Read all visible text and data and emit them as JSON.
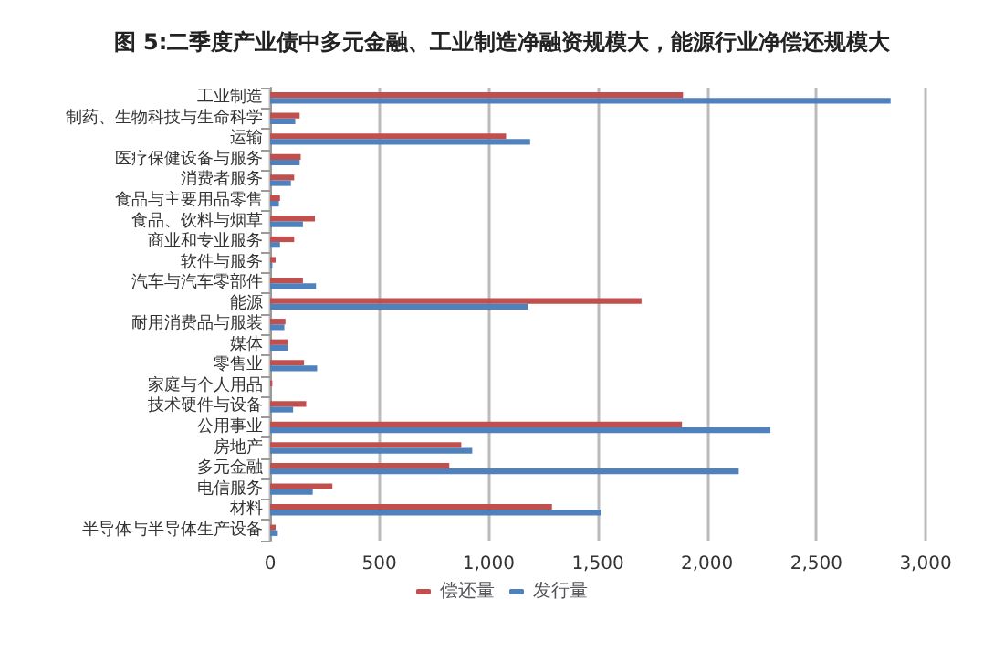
{
  "chart_data": {
    "type": "bar",
    "orientation": "horizontal",
    "title": "图 5:二季度产业债中多元金融、工业制造净融资规模大，能源行业净偿还规模大",
    "categories": [
      "工业制造",
      "制药、生物科技与生命科学",
      "运输",
      "医疗保健设备与服务",
      "消费者服务",
      "食品与主要用品零售",
      "食品、饮料与烟草",
      "商业和专业服务",
      "软件与服务",
      "汽车与汽车零部件",
      "能源",
      "耐用消费品与服装",
      "媒体",
      "零售业",
      "家庭与个人用品",
      "技术硬件与设备",
      "公用事业",
      "房地产",
      "多元金融",
      "电信服务",
      "材料",
      "半导体与半导体生产设备"
    ],
    "series": [
      {
        "name": "偿还量",
        "color": "#c0504d",
        "values": [
          1890,
          135,
          1080,
          140,
          110,
          45,
          205,
          110,
          25,
          150,
          1700,
          70,
          80,
          155,
          10,
          165,
          1885,
          875,
          820,
          285,
          1290,
          25
        ]
      },
      {
        "name": "发行量",
        "color": "#4f81bd",
        "values": [
          2840,
          115,
          1190,
          135,
          95,
          40,
          150,
          45,
          10,
          210,
          1180,
          65,
          80,
          215,
          0,
          105,
          2290,
          925,
          2145,
          195,
          1515,
          35
        ]
      }
    ],
    "xlim": [
      0,
      3000
    ],
    "xticks": [
      {
        "value": 0,
        "label": "0"
      },
      {
        "value": 500,
        "label": "500"
      },
      {
        "value": 1000,
        "label": "1,000"
      },
      {
        "value": 1500,
        "label": "1,500"
      },
      {
        "value": 2000,
        "label": "2,000"
      },
      {
        "value": 2500,
        "label": "2,500"
      },
      {
        "value": 3000,
        "label": "3,000"
      }
    ],
    "grid": "x",
    "legend": "bottom"
  }
}
